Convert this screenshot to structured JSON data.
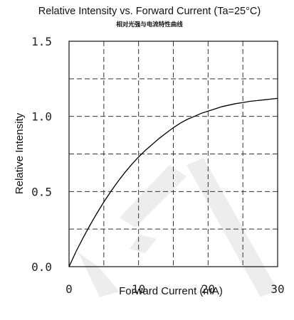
{
  "chart_data": {
    "type": "line",
    "title": "Relative Intensity vs. Forward Current (Ta=25°C)",
    "subtitle": "相对光强与电流特性曲线",
    "xlabel": "Forward Current (mA)",
    "ylabel": "Relative Intensity",
    "xlim": [
      0,
      30
    ],
    "ylim": [
      0,
      1.5
    ],
    "x_ticks": [
      "0",
      "10",
      "20",
      "30"
    ],
    "y_ticks": [
      "0.0",
      "0.5",
      "1.0",
      "1.5"
    ],
    "x_grid": [
      0,
      5,
      10,
      15,
      20,
      25,
      30
    ],
    "y_grid": [
      0,
      0.25,
      0.5,
      0.75,
      1.0,
      1.25,
      1.5
    ],
    "grid": true,
    "series": [
      {
        "x": [
          0,
          1,
          2,
          3,
          4,
          5,
          6,
          7,
          8,
          9,
          10,
          11,
          12,
          13,
          14,
          15,
          16,
          17,
          18,
          19,
          20,
          21,
          22,
          23,
          24,
          25,
          26,
          27,
          28,
          29,
          30
        ],
        "values": [
          0,
          0.1,
          0.19,
          0.275,
          0.355,
          0.43,
          0.5,
          0.565,
          0.625,
          0.68,
          0.73,
          0.775,
          0.815,
          0.855,
          0.89,
          0.925,
          0.955,
          0.98,
          1.0,
          1.02,
          1.035,
          1.05,
          1.065,
          1.075,
          1.085,
          1.092,
          1.1,
          1.105,
          1.11,
          1.115,
          1.12
        ]
      }
    ]
  }
}
